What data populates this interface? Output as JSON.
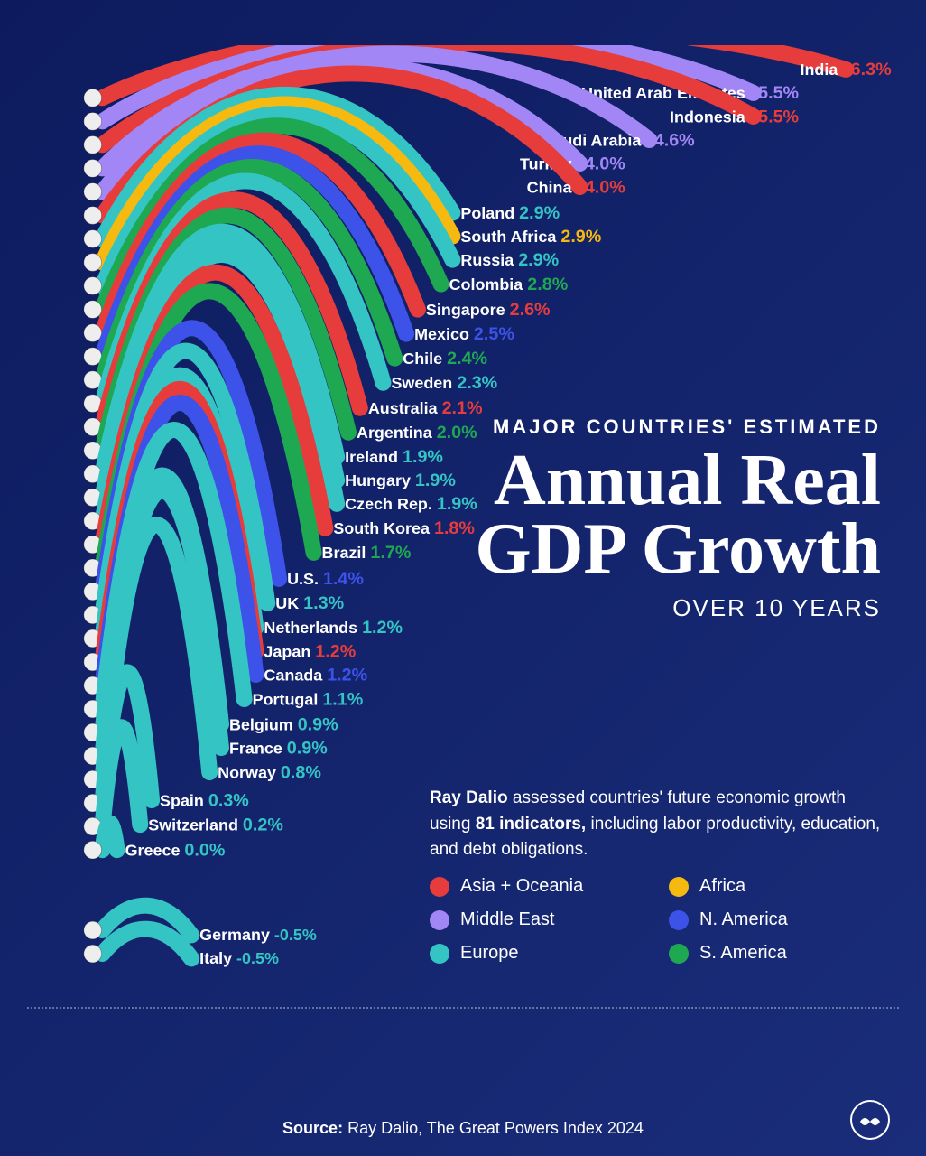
{
  "background_color": "#0d1b5e",
  "title": {
    "subtitle_top": "MAJOR COUNTRIES' ESTIMATED",
    "main": "Annual Real GDP Growth",
    "subtitle_bottom": "OVER 10 YEARS"
  },
  "description": "Ray Dalio assessed countries' future economic growth using 81 indicators, including labor productivity, education, and debt obligations.",
  "source": {
    "label": "Source:",
    "text": "Ray Dalio, The Great Powers Index 2024"
  },
  "regions": {
    "asia_oceania": {
      "label": "Asia + Oceania",
      "color": "#e73c3c"
    },
    "middle_east": {
      "label": "Middle East",
      "color": "#a386f5"
    },
    "europe": {
      "label": "Europe",
      "color": "#35c4c4"
    },
    "africa": {
      "label": "Africa",
      "color": "#f5b910"
    },
    "n_america": {
      "label": "N. America",
      "color": "#3d52e8"
    },
    "s_america": {
      "label": "S. America",
      "color": "#1ea852"
    }
  },
  "chart": {
    "type": "radial-arc-bar",
    "bar_thickness": 20,
    "flag_radius": 11,
    "label_fontsize": 20,
    "value_fontsize": 22,
    "countries": [
      {
        "name": "India",
        "value": "6.3%",
        "pct": 6.3,
        "region": "asia_oceania"
      },
      {
        "name": "United Arab Emirates",
        "value": "5.5%",
        "pct": 5.5,
        "region": "middle_east"
      },
      {
        "name": "Indonesia",
        "value": "5.5%",
        "pct": 5.5,
        "region": "asia_oceania"
      },
      {
        "name": "Saudi Arabia",
        "value": "4.6%",
        "pct": 4.6,
        "region": "middle_east"
      },
      {
        "name": "Turkey",
        "value": "4.0%",
        "pct": 4.0,
        "region": "middle_east"
      },
      {
        "name": "China",
        "value": "4.0%",
        "pct": 4.0,
        "region": "asia_oceania"
      },
      {
        "name": "Poland",
        "value": "2.9%",
        "pct": 2.9,
        "region": "europe"
      },
      {
        "name": "South Africa",
        "value": "2.9%",
        "pct": 2.9,
        "region": "africa"
      },
      {
        "name": "Russia",
        "value": "2.9%",
        "pct": 2.9,
        "region": "europe"
      },
      {
        "name": "Colombia",
        "value": "2.8%",
        "pct": 2.8,
        "region": "s_america"
      },
      {
        "name": "Singapore",
        "value": "2.6%",
        "pct": 2.6,
        "region": "asia_oceania"
      },
      {
        "name": "Mexico",
        "value": "2.5%",
        "pct": 2.5,
        "region": "n_america"
      },
      {
        "name": "Chile",
        "value": "2.4%",
        "pct": 2.4,
        "region": "s_america"
      },
      {
        "name": "Sweden",
        "value": "2.3%",
        "pct": 2.3,
        "region": "europe"
      },
      {
        "name": "Australia",
        "value": "2.1%",
        "pct": 2.1,
        "region": "asia_oceania"
      },
      {
        "name": "Argentina",
        "value": "2.0%",
        "pct": 2.0,
        "region": "s_america"
      },
      {
        "name": "Ireland",
        "value": "1.9%",
        "pct": 1.9,
        "region": "europe"
      },
      {
        "name": "Hungary",
        "value": "1.9%",
        "pct": 1.9,
        "region": "europe"
      },
      {
        "name": "Czech Rep.",
        "value": "1.9%",
        "pct": 1.9,
        "region": "europe"
      },
      {
        "name": "South Korea",
        "value": "1.8%",
        "pct": 1.8,
        "region": "asia_oceania"
      },
      {
        "name": "Brazil",
        "value": "1.7%",
        "pct": 1.7,
        "region": "s_america"
      },
      {
        "name": "U.S.",
        "value": "1.4%",
        "pct": 1.4,
        "region": "n_america"
      },
      {
        "name": "UK",
        "value": "1.3%",
        "pct": 1.3,
        "region": "europe"
      },
      {
        "name": "Netherlands",
        "value": "1.2%",
        "pct": 1.2,
        "region": "europe"
      },
      {
        "name": "Japan",
        "value": "1.2%",
        "pct": 1.2,
        "region": "asia_oceania"
      },
      {
        "name": "Canada",
        "value": "1.2%",
        "pct": 1.2,
        "region": "n_america"
      },
      {
        "name": "Portugal",
        "value": "1.1%",
        "pct": 1.1,
        "region": "europe"
      },
      {
        "name": "Belgium",
        "value": "0.9%",
        "pct": 0.9,
        "region": "europe"
      },
      {
        "name": "France",
        "value": "0.9%",
        "pct": 0.9,
        "region": "europe"
      },
      {
        "name": "Norway",
        "value": "0.8%",
        "pct": 0.8,
        "region": "europe"
      },
      {
        "name": "Spain",
        "value": "0.3%",
        "pct": 0.3,
        "region": "europe"
      },
      {
        "name": "Switzerland",
        "value": "0.2%",
        "pct": 0.2,
        "region": "europe"
      },
      {
        "name": "Greece",
        "value": "0.0%",
        "pct": 0.0,
        "region": "europe"
      }
    ],
    "negative_countries": [
      {
        "name": "Germany",
        "value": "-0.5%",
        "pct": -0.5,
        "region": "europe"
      },
      {
        "name": "Italy",
        "value": "-0.5%",
        "pct": -0.5,
        "region": "europe"
      }
    ]
  }
}
